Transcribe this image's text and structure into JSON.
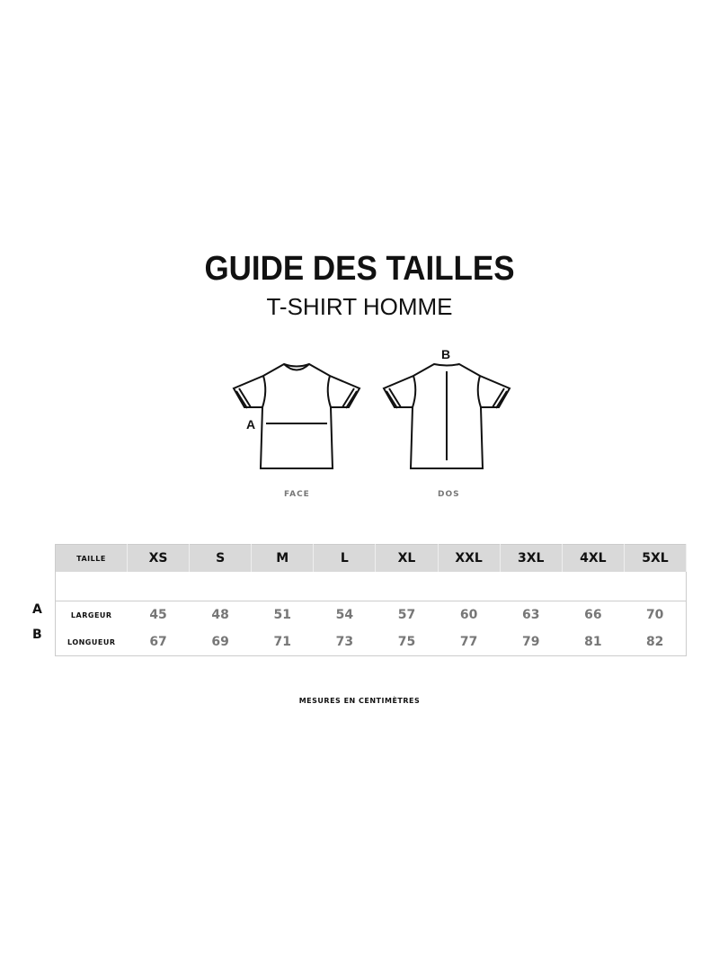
{
  "header": {
    "title": "GUIDE DES TAILLES",
    "subtitle": "T-SHIRT HOMME"
  },
  "diagram": {
    "front_label": "FACE",
    "back_label": "DOS",
    "front_marker": "A",
    "back_marker": "B"
  },
  "table": {
    "header_label": "TAILLE",
    "sizes": [
      "XS",
      "S",
      "M",
      "L",
      "XL",
      "XXL",
      "3XL",
      "4XL",
      "5XL"
    ],
    "rows": [
      {
        "marker": "A",
        "label": "LARGEUR",
        "values": [
          45,
          48,
          51,
          54,
          57,
          60,
          63,
          66,
          70
        ]
      },
      {
        "marker": "B",
        "label": "LONGUEUR",
        "values": [
          67,
          69,
          71,
          73,
          75,
          77,
          79,
          81,
          82
        ]
      }
    ]
  },
  "footer": {
    "note": "MESURES EN CENTIMÈTRES"
  }
}
